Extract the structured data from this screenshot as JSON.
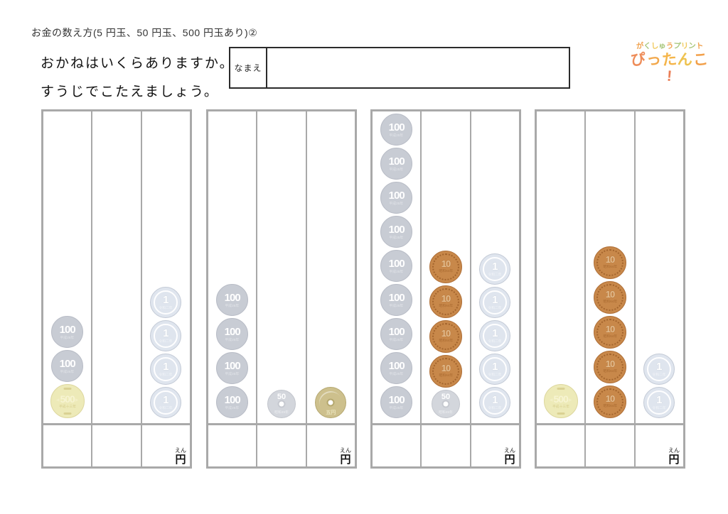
{
  "header": {
    "title": "お金の数え方(5 円玉、50 円玉、500 円玉あり)②",
    "question_line1": "おかねはいくらありますか。",
    "question_line2": "すうじでこたえましょう。",
    "name_label": "なまえ",
    "name_value": ""
  },
  "logo": {
    "line1": "がくしゅうプリント",
    "line2": "ぴったんこ!",
    "line1_colors": [
      "#f0a24e",
      "#a9c77d",
      "#f0c95d",
      "#a9c77d"
    ],
    "line2_colors": [
      "#ee8d5a",
      "#f2a84c",
      "#f5b54a",
      "#eec24f",
      "#f2a04a",
      "#ea7d55"
    ]
  },
  "answer_unit": {
    "label": "円",
    "furigana": "えん"
  },
  "border_color": "#a9a9a9",
  "coins": {
    "c1": {
      "value": 1,
      "label": "1",
      "sub": "令和二年",
      "bg": "#dfe5ee",
      "edge": "#c3cad6",
      "label_color": "#ffffff",
      "sub_color": "#f2f4f8",
      "size": 44,
      "parts": [
        "ring"
      ]
    },
    "c5": {
      "value": 5,
      "label": "五円",
      "sub": "",
      "bg": "#cdc08d",
      "edge": "#b5a871",
      "label_color": "#ece6c0",
      "sub_color": "",
      "size": 44,
      "parts": [
        "hole",
        "ring"
      ]
    },
    "c10": {
      "value": 10,
      "label": "10",
      "sub": "昭和64年",
      "bg": "#c8884a",
      "edge": "#b07038",
      "label_color": "#e3bc8e",
      "sub_color": "#a96a30",
      "size": 46,
      "parts": [
        "ring"
      ]
    },
    "c50": {
      "value": 50,
      "label": "50",
      "sub": "昭和49年",
      "bg": "#d3d6dc",
      "edge": "#c2c5cc",
      "label_color": "#ffffff",
      "sub_color": "#eceef1",
      "size": 40,
      "parts": [
        "hole"
      ]
    },
    "c100": {
      "value": 100,
      "label": "100",
      "sub": "平成25年",
      "bg": "#c8ccd4",
      "edge": "#b8bcc6",
      "label_color": "#ffffff",
      "sub_color": "#e3e5ea",
      "size": 45,
      "parts": []
    },
    "c500": {
      "value": 500,
      "label": "500",
      "sub": "平成十三年",
      "bg": "#edeab8",
      "edge": "#ddd79e",
      "label_color": "#f7f4d2",
      "sub_color": "#d6cd8c",
      "size": 48,
      "parts": []
    }
  },
  "problems": [
    {
      "id": 1,
      "columns": [
        [
          "c100",
          "c100",
          "c500"
        ],
        [],
        [
          "c1",
          "c1",
          "c1",
          "c1"
        ]
      ],
      "answer": ""
    },
    {
      "id": 2,
      "columns": [
        [
          "c100",
          "c100",
          "c100",
          "c100"
        ],
        [
          "c50"
        ],
        [
          "c5"
        ]
      ],
      "answer": ""
    },
    {
      "id": 3,
      "columns": [
        [
          "c100",
          "c100",
          "c100",
          "c100",
          "c100",
          "c100",
          "c100",
          "c100",
          "c100"
        ],
        [
          "c10",
          "c10",
          "c10",
          "c10",
          "c50"
        ],
        [
          "c1",
          "c1",
          "c1",
          "c1",
          "c1"
        ]
      ],
      "answer": ""
    },
    {
      "id": 4,
      "columns": [
        [
          "c500"
        ],
        [
          "c10",
          "c10",
          "c10",
          "c10",
          "c10"
        ],
        [
          "c1",
          "c1"
        ]
      ],
      "answer": ""
    }
  ]
}
